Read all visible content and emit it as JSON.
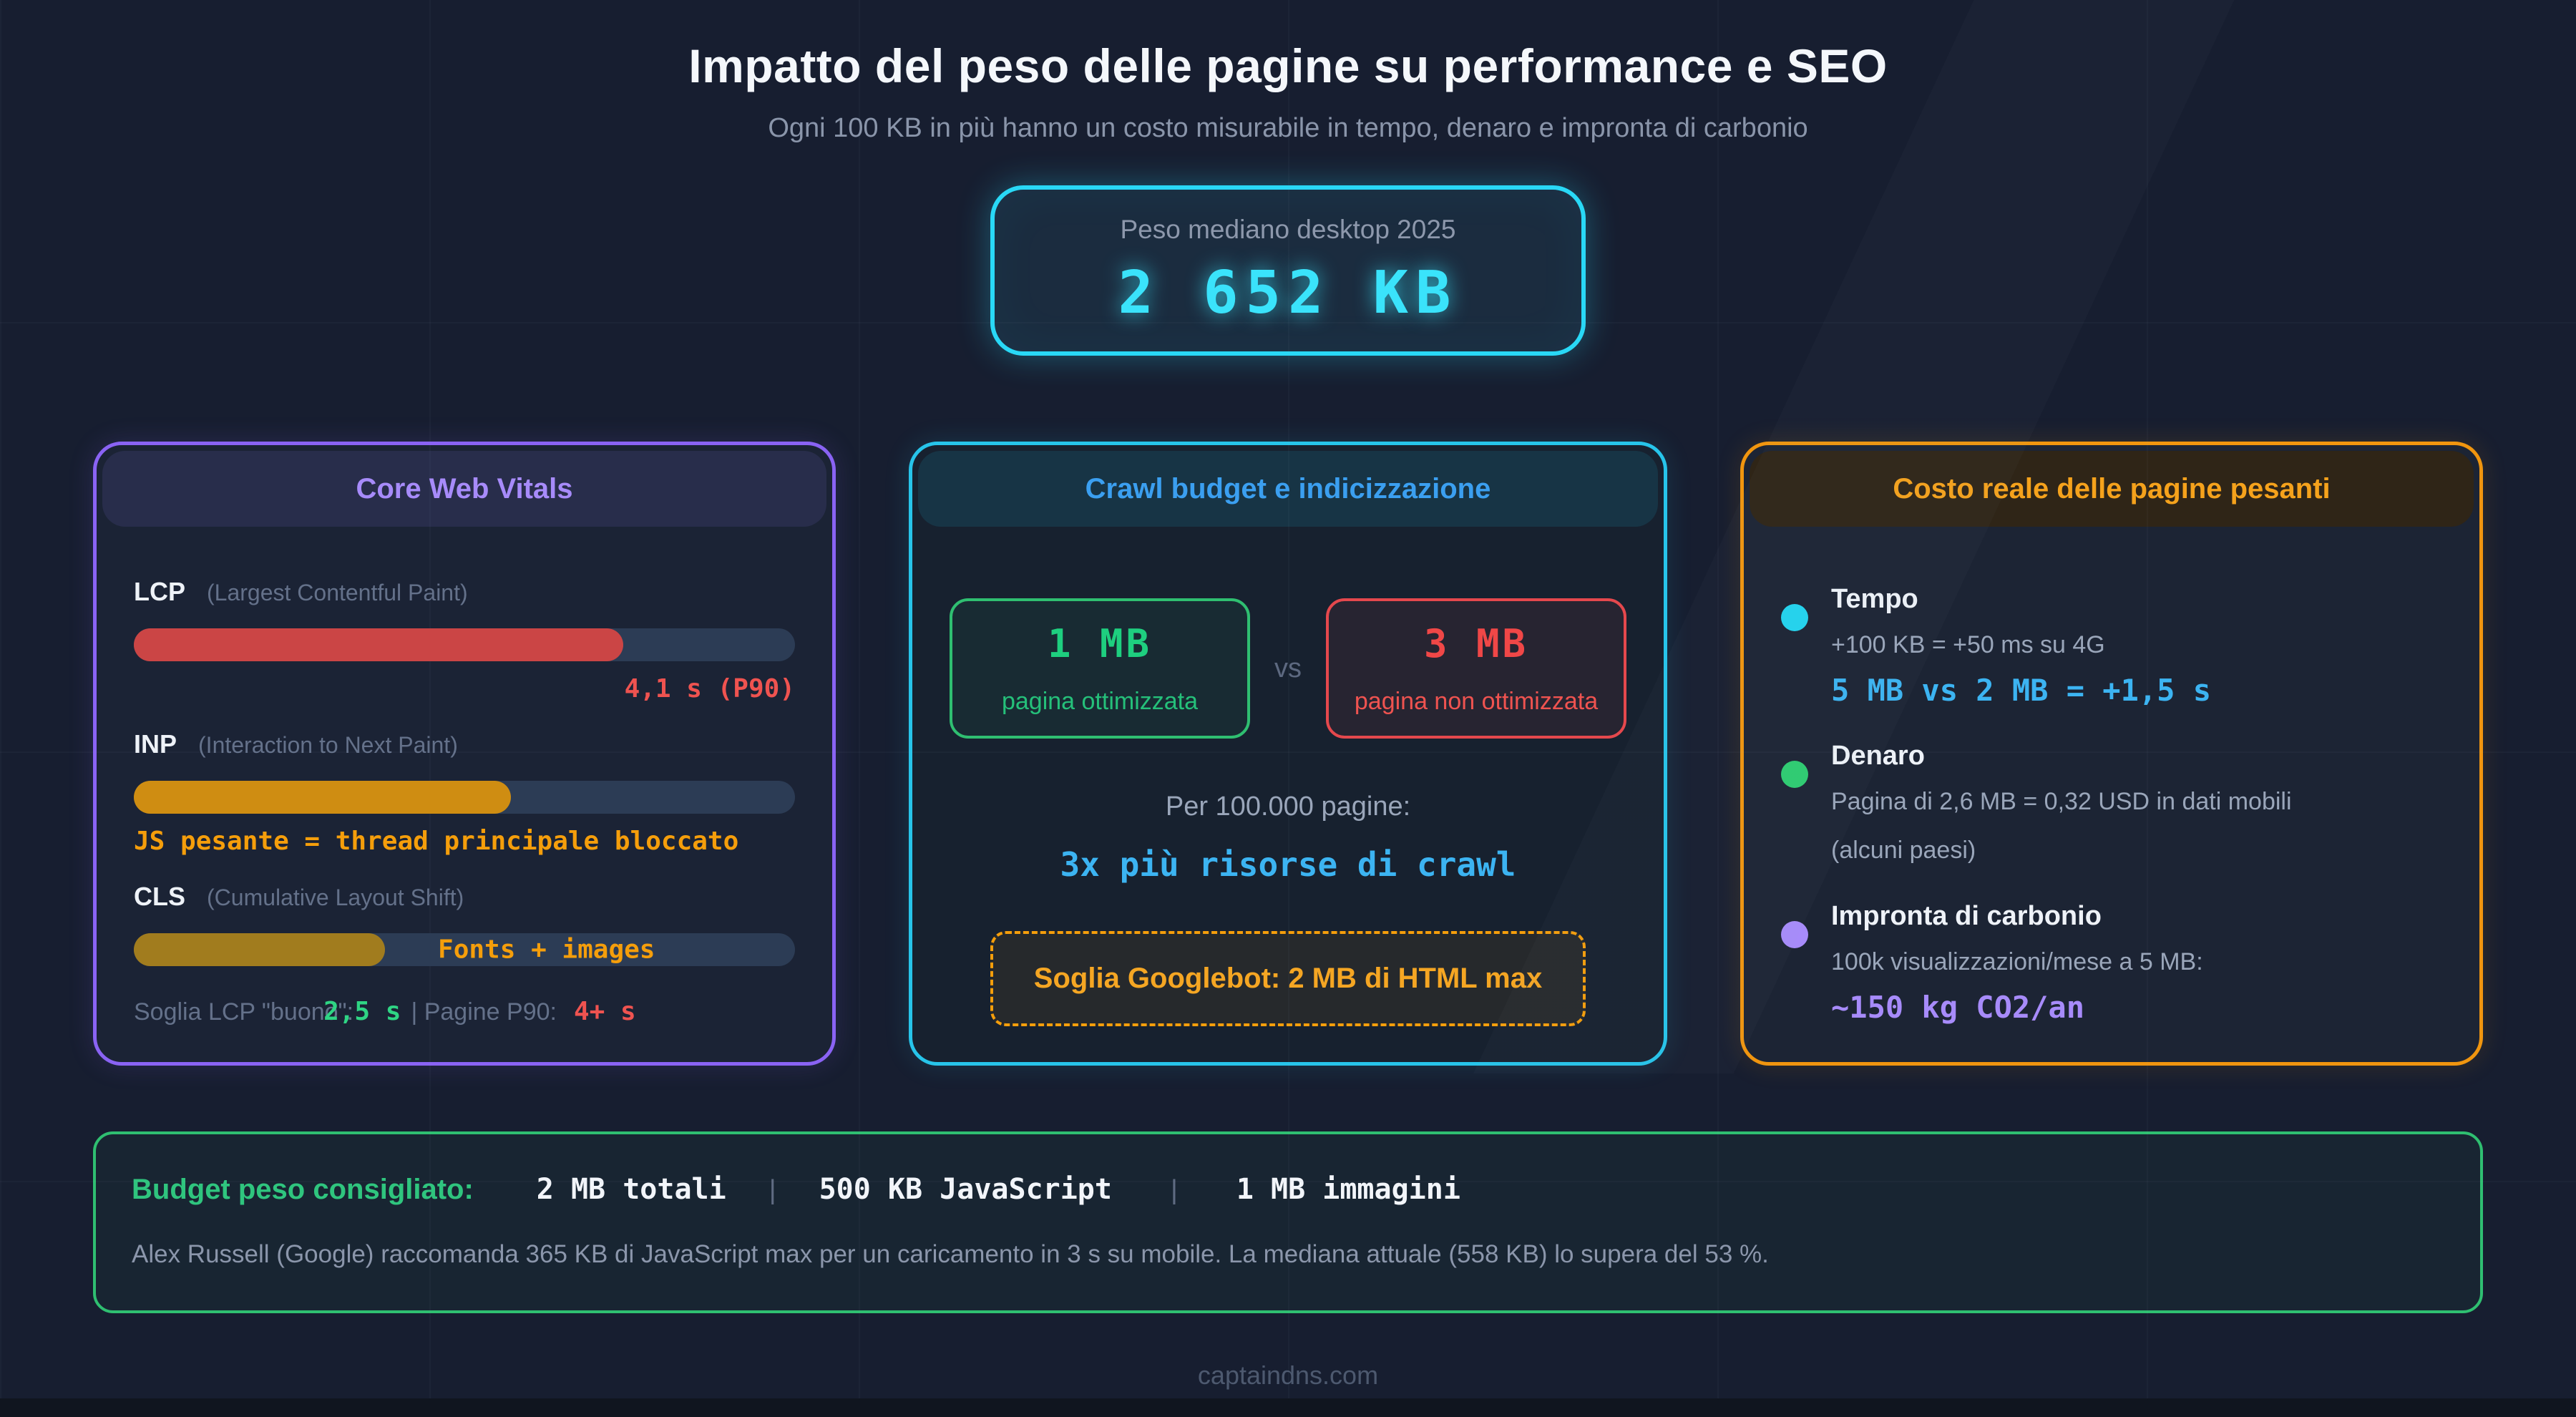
{
  "page": {
    "title": "Impatto del peso delle pagine su performance e SEO",
    "subtitle": "Ogni 100 KB in più hanno un costo misurabile in tempo, denaro e impronta di carbonio",
    "footer": "captaindns.com"
  },
  "hero": {
    "label": "Peso mediano desktop 2025",
    "value": "2 652 KB"
  },
  "cards": {
    "cwv": {
      "title": "Core Web Vitals",
      "metrics": [
        {
          "name": "LCP",
          "desc": "(Largest Contentful Paint)",
          "fill": "74%",
          "fill_color": "#cb4545",
          "value": "4,1 s (P90)"
        },
        {
          "name": "INP",
          "desc": "(Interaction to Next Paint)",
          "fill": "57%",
          "fill_color": "#cf8d12",
          "note": "JS pesante = thread principale bloccato"
        },
        {
          "name": "CLS",
          "desc": "(Cumulative Layout Shift)",
          "fill": "38%",
          "fill_color": "#a17c1e",
          "bar_label": "Fonts + images"
        }
      ],
      "footnote": {
        "part1": "Soglia LCP \"buono\":",
        "good_value": "2,5 s",
        "part2": "| Pagine P90:",
        "bad_value": "4+ s"
      }
    },
    "crawl": {
      "title": "Crawl budget e indicizzazione",
      "optimized": {
        "value": "1 MB",
        "label": "pagina ottimizzata"
      },
      "vs": "vs",
      "unoptimized": {
        "value": "3 MB",
        "label": "pagina non ottimizzata"
      },
      "scale_line": "Per 100.000 pagine:",
      "impact_line": "3x più risorse di crawl",
      "callout": "Soglia Googlebot: 2 MB di HTML max"
    },
    "cost": {
      "title": "Costo reale delle pagine pesanti",
      "items": [
        {
          "title": "Tempo",
          "desc": "+100 KB = +50 ms su 4G",
          "value": "5 MB vs 2 MB = +1,5 s",
          "dot_color": "#22d3ee"
        },
        {
          "title": "Denaro",
          "desc": "Pagina di 2,6 MB = 0,32 USD in dati mobili",
          "desc2": "(alcuni paesi)",
          "dot_color": "#2ecc71"
        },
        {
          "title": "Impronta di carbonio",
          "desc": "100k visualizzazioni/mese a 5 MB:",
          "value": "~150 kg CO2/an",
          "dot_color": "#a78bfa"
        }
      ]
    }
  },
  "budget": {
    "label": "Budget peso consigliato:",
    "items": [
      "2 MB totali",
      "500 KB JavaScript",
      "1 MB immagini"
    ],
    "separator": "|",
    "note": "Alex Russell (Google) raccomanda 365 KB di JavaScript max per un caricamento in 3 s su mobile. La mediana attuale (558 KB) lo supera del 53 %."
  },
  "colors": {
    "background": "#171e30",
    "accent_cyan": "#29d8f6",
    "accent_purple": "#8a63f4",
    "accent_blue": "#3cb4f2",
    "accent_green": "#2fbf71",
    "accent_red": "#ef5350",
    "accent_orange": "#f59e0b",
    "bar_track": "#2c3c55"
  }
}
